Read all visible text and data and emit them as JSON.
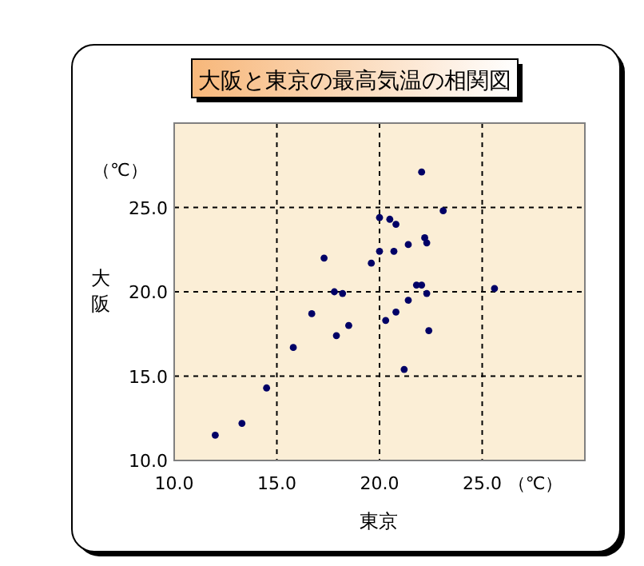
{
  "chart_data": {
    "type": "scatter",
    "title": "大阪と東京の最高気温の相関図",
    "xlabel": "東京",
    "ylabel": "大阪",
    "annotations": [
      "（℃）",
      "（℃）"
    ],
    "xlim": [
      10,
      30
    ],
    "ylim": [
      10,
      30
    ],
    "xticks": [
      {
        "value": 10,
        "label": "10.0"
      },
      {
        "value": 15,
        "label": "15.0"
      },
      {
        "value": 20,
        "label": "20.0"
      },
      {
        "value": 25,
        "label": "25.0"
      }
    ],
    "yticks": [
      {
        "value": 10,
        "label": "10.0"
      },
      {
        "value": 15,
        "label": "15.0"
      },
      {
        "value": 20,
        "label": "20.0"
      },
      {
        "value": 25,
        "label": "25.0"
      }
    ],
    "grid": true,
    "marker": "circle",
    "series": [
      {
        "color": "#000066",
        "x": [
          22.05,
          23.1,
          20.0,
          20.5,
          20.8,
          22.2,
          22.3,
          21.4,
          17.3,
          20.0,
          20.7,
          19.6,
          17.8,
          18.2,
          21.8,
          22.05,
          22.3,
          25.6,
          21.4,
          16.7,
          20.8,
          20.3,
          18.5,
          17.9,
          22.4,
          15.8,
          21.2,
          14.5,
          13.3,
          12.0
        ],
        "values": [
          27.1,
          24.8,
          24.4,
          24.3,
          24.0,
          23.2,
          22.9,
          22.8,
          22.0,
          22.4,
          22.4,
          21.7,
          20.0,
          19.9,
          20.4,
          20.4,
          19.9,
          20.2,
          19.5,
          18.7,
          18.8,
          18.3,
          18.0,
          17.4,
          17.7,
          16.7,
          15.4,
          14.3,
          12.2,
          11.5
        ]
      }
    ]
  }
}
